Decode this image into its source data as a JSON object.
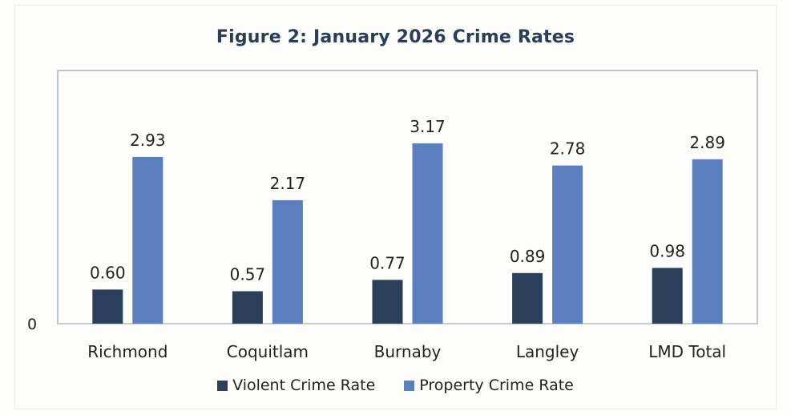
{
  "chart_data": {
    "type": "bar",
    "title": "Figure 2: January 2026 Crime Rates",
    "categories": [
      "Richmond",
      "Coquitlam",
      "Burnaby",
      "Langley",
      "LMD Total"
    ],
    "series": [
      {
        "name": "Violent Crime Rate",
        "values": [
          0.6,
          0.57,
          0.77,
          0.89,
          0.98
        ],
        "labels": [
          "0.60",
          "0.57",
          "0.77",
          "0.89",
          "0.98"
        ],
        "color": "#2b3e5a"
      },
      {
        "name": "Property Crime Rate",
        "values": [
          2.93,
          2.17,
          3.17,
          2.78,
          2.89
        ],
        "labels": [
          "2.93",
          "2.17",
          "3.17",
          "2.78",
          "2.89"
        ],
        "color": "#5b7fbe"
      }
    ],
    "y_tick_labels": [
      "0"
    ],
    "ylim": [
      0,
      4.45
    ],
    "xlabel": "",
    "ylabel": "",
    "grid": false,
    "legend_position": "bottom"
  }
}
